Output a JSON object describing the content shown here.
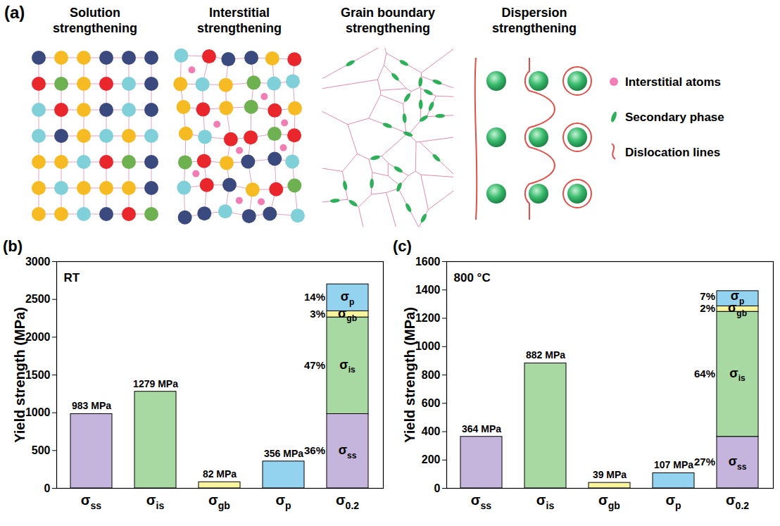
{
  "diagram": {
    "label": "(a)",
    "panels": [
      {
        "title": "Solution strengthening"
      },
      {
        "title": "Interstitial strengthening"
      },
      {
        "title": "Grain boundary strengthening"
      },
      {
        "title": "Dispersion strengthening"
      }
    ],
    "legend": [
      {
        "label": "Interstitial atoms"
      },
      {
        "label": "Secondary phase"
      },
      {
        "label": "Dislocation lines"
      }
    ]
  },
  "chart_data": [
    {
      "type": "bar",
      "stacked": true,
      "data_labels": true,
      "panel": "(b)",
      "annotation": "RT",
      "y_label": "Yield strength (MPa)",
      "categories": [
        "σss",
        "σis",
        "σgb",
        "σp",
        "σ0.2"
      ],
      "ylim": [
        0,
        3000
      ],
      "yticks": [
        0,
        500,
        1000,
        1500,
        2000,
        2500,
        3000
      ],
      "series": [
        {
          "name": "σss",
          "color": "#c5b4dc",
          "values": [
            983,
            null,
            null,
            null,
            983
          ],
          "value_labels": [
            "983 MPa",
            null,
            null,
            null,
            null
          ],
          "share_label": "36%"
        },
        {
          "name": "σis",
          "color": "#a9d9a3",
          "values": [
            null,
            1279,
            null,
            null,
            1279
          ],
          "value_labels": [
            null,
            "1279 MPa",
            null,
            null,
            null
          ],
          "share_label": "47%"
        },
        {
          "name": "σgb",
          "color": "#f7f49d",
          "values": [
            null,
            null,
            82,
            null,
            82
          ],
          "value_labels": [
            null,
            null,
            "82 MPa",
            null,
            null
          ],
          "share_label": "3%"
        },
        {
          "name": "σp",
          "color": "#94d3f0",
          "values": [
            null,
            null,
            null,
            356,
            356
          ],
          "value_labels": [
            null,
            null,
            null,
            "356 MPa",
            null
          ],
          "share_label": "14%"
        }
      ]
    },
    {
      "type": "bar",
      "stacked": true,
      "data_labels": true,
      "panel": "(c)",
      "annotation": "800 °C",
      "y_label": "Yield strength (MPa)",
      "categories": [
        "σss",
        "σis",
        "σgb",
        "σp",
        "σ0.2"
      ],
      "ylim": [
        0,
        1600
      ],
      "yticks": [
        0,
        200,
        400,
        600,
        800,
        1000,
        1200,
        1400,
        1600
      ],
      "series": [
        {
          "name": "σss",
          "color": "#c5b4dc",
          "values": [
            364,
            null,
            null,
            null,
            364
          ],
          "value_labels": [
            "364 MPa",
            null,
            null,
            null,
            null
          ],
          "share_label": "27%"
        },
        {
          "name": "σis",
          "color": "#a9d9a3",
          "values": [
            null,
            882,
            null,
            null,
            882
          ],
          "value_labels": [
            null,
            "882 MPa",
            null,
            null,
            null
          ],
          "share_label": "64%"
        },
        {
          "name": "σgb",
          "color": "#f7f49d",
          "values": [
            null,
            null,
            39,
            null,
            39
          ],
          "value_labels": [
            null,
            null,
            "39 MPa",
            null,
            null
          ],
          "share_label": "2%"
        },
        {
          "name": "σp",
          "color": "#94d3f0",
          "values": [
            null,
            null,
            null,
            107,
            107
          ],
          "value_labels": [
            null,
            null,
            null,
            "107 MPa",
            null
          ],
          "share_label": "7%"
        }
      ]
    }
  ]
}
